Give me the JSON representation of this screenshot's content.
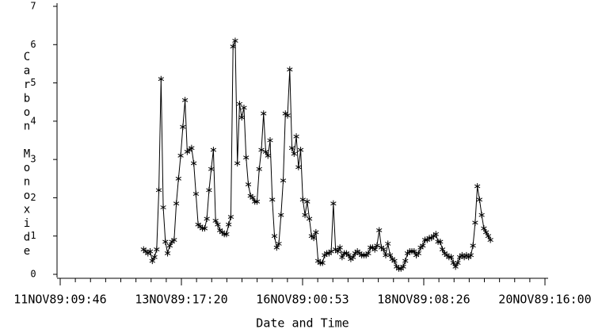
{
  "chart_data": {
    "type": "line",
    "x_label": "Date and Time",
    "y_label": "Carbon Monoxide",
    "color": "#000000",
    "marker": "asterisk",
    "xlim": [
      "1989-11-11T08:19",
      "1989-11-20T17:27"
    ],
    "xticks": [
      {
        "value": "1989-11-11T09:46",
        "label": "11NOV89:09:46"
      },
      {
        "value": "1989-11-13T17:20",
        "label": "13NOV89:17:20"
      },
      {
        "value": "1989-11-16T00:53",
        "label": "16NOV89:00:53"
      },
      {
        "value": "1989-11-18T08:26",
        "label": "18NOV89:08:26"
      },
      {
        "value": "1989-11-20T16:00",
        "label": "20NOV89:16:00"
      }
    ],
    "ylim": [
      0,
      7
    ],
    "yticks": [
      0,
      1,
      2,
      3,
      4,
      5,
      6,
      7
    ],
    "x": [
      "1989-11-13T00:00",
      "1989-11-13T01:00",
      "1989-11-13T02:00",
      "1989-11-13T03:00",
      "1989-11-13T04:00",
      "1989-11-13T05:00",
      "1989-11-13T06:00",
      "1989-11-13T07:00",
      "1989-11-13T08:00",
      "1989-11-13T09:00",
      "1989-11-13T10:00",
      "1989-11-13T11:00",
      "1989-11-13T12:00",
      "1989-11-13T13:00",
      "1989-11-13T14:00",
      "1989-11-13T15:00",
      "1989-11-13T16:00",
      "1989-11-13T17:00",
      "1989-11-13T18:00",
      "1989-11-13T19:00",
      "1989-11-13T20:00",
      "1989-11-13T21:00",
      "1989-11-13T22:00",
      "1989-11-13T23:00",
      "1989-11-14T00:00",
      "1989-11-14T01:00",
      "1989-11-14T02:00",
      "1989-11-14T03:00",
      "1989-11-14T04:00",
      "1989-11-14T05:00",
      "1989-11-14T06:00",
      "1989-11-14T07:00",
      "1989-11-14T08:00",
      "1989-11-14T09:00",
      "1989-11-14T10:00",
      "1989-11-14T11:00",
      "1989-11-14T12:00",
      "1989-11-14T13:00",
      "1989-11-14T14:00",
      "1989-11-14T15:00",
      "1989-11-14T16:00",
      "1989-11-14T17:00",
      "1989-11-14T18:00",
      "1989-11-14T19:00",
      "1989-11-14T20:00",
      "1989-11-14T21:00",
      "1989-11-14T22:00",
      "1989-11-14T23:00",
      "1989-11-15T00:00",
      "1989-11-15T01:00",
      "1989-11-15T02:00",
      "1989-11-15T03:00",
      "1989-11-15T04:00",
      "1989-11-15T05:00",
      "1989-11-15T06:00",
      "1989-11-15T07:00",
      "1989-11-15T08:00",
      "1989-11-15T09:00",
      "1989-11-15T10:00",
      "1989-11-15T11:00",
      "1989-11-15T12:00",
      "1989-11-15T13:00",
      "1989-11-15T14:00",
      "1989-11-15T15:00",
      "1989-11-15T16:00",
      "1989-11-15T17:00",
      "1989-11-15T18:00",
      "1989-11-15T19:00",
      "1989-11-15T20:00",
      "1989-11-15T21:00",
      "1989-11-15T22:00",
      "1989-11-15T23:00",
      "1989-11-16T00:00",
      "1989-11-16T01:00",
      "1989-11-16T02:00",
      "1989-11-16T03:00",
      "1989-11-16T04:00",
      "1989-11-16T05:00",
      "1989-11-16T06:00",
      "1989-11-16T07:00",
      "1989-11-16T08:00",
      "1989-11-16T09:00",
      "1989-11-16T10:00",
      "1989-11-16T11:00",
      "1989-11-16T12:00",
      "1989-11-16T13:00",
      "1989-11-16T14:00",
      "1989-11-16T15:00",
      "1989-11-16T16:00",
      "1989-11-16T17:00",
      "1989-11-16T18:00",
      "1989-11-16T19:00",
      "1989-11-16T20:00",
      "1989-11-16T21:00",
      "1989-11-16T22:00",
      "1989-11-16T23:00",
      "1989-11-17T00:00",
      "1989-11-17T01:00",
      "1989-11-17T02:00",
      "1989-11-17T03:00",
      "1989-11-17T04:00",
      "1989-11-17T05:00",
      "1989-11-17T06:00",
      "1989-11-17T07:00",
      "1989-11-17T08:00",
      "1989-11-17T09:00",
      "1989-11-17T10:00",
      "1989-11-17T11:00",
      "1989-11-17T12:00",
      "1989-11-17T13:00",
      "1989-11-17T14:00",
      "1989-11-17T15:00",
      "1989-11-17T16:00",
      "1989-11-17T17:00",
      "1989-11-17T18:00",
      "1989-11-17T19:00",
      "1989-11-17T20:00",
      "1989-11-17T21:00",
      "1989-11-17T22:00",
      "1989-11-17T23:00",
      "1989-11-18T00:00",
      "1989-11-18T01:00",
      "1989-11-18T02:00",
      "1989-11-18T03:00",
      "1989-11-18T04:00",
      "1989-11-18T05:00",
      "1989-11-18T06:00",
      "1989-11-18T07:00",
      "1989-11-18T08:00",
      "1989-11-18T09:00",
      "1989-11-18T10:00",
      "1989-11-18T11:00",
      "1989-11-18T12:00",
      "1989-11-18T13:00",
      "1989-11-18T14:00",
      "1989-11-18T15:00",
      "1989-11-18T16:00",
      "1989-11-18T17:00",
      "1989-11-18T18:00",
      "1989-11-18T19:00",
      "1989-11-18T20:00",
      "1989-11-18T21:00",
      "1989-11-18T22:00",
      "1989-11-18T23:00",
      "1989-11-19T00:00",
      "1989-11-19T01:00",
      "1989-11-19T02:00",
      "1989-11-19T03:00",
      "1989-11-19T04:00",
      "1989-11-19T05:00",
      "1989-11-19T06:00",
      "1989-11-19T07:00",
      "1989-11-19T08:00",
      "1989-11-19T09:00",
      "1989-11-19T10:00",
      "1989-11-19T11:00",
      "1989-11-19T12:00",
      "1989-11-19T13:00",
      "1989-11-19T14:00",
      "1989-11-19T15:00"
    ],
    "values": [
      0.65,
      0.6,
      0.55,
      0.6,
      0.35,
      0.45,
      0.65,
      2.2,
      5.1,
      1.75,
      0.85,
      0.55,
      0.75,
      0.85,
      0.9,
      1.85,
      2.5,
      3.1,
      3.85,
      4.55,
      3.2,
      3.25,
      3.3,
      2.9,
      2.1,
      1.3,
      1.25,
      1.2,
      1.2,
      1.45,
      2.2,
      2.75,
      3.25,
      1.4,
      1.3,
      1.15,
      1.1,
      1.05,
      1.05,
      1.3,
      1.5,
      5.95,
      6.1,
      2.9,
      4.45,
      4.1,
      4.35,
      3.05,
      2.35,
      2.05,
      2.0,
      1.9,
      1.9,
      2.75,
      3.25,
      4.2,
      3.2,
      3.1,
      3.5,
      1.95,
      1.0,
      0.7,
      0.8,
      1.55,
      2.45,
      4.2,
      4.15,
      5.35,
      3.3,
      3.15,
      3.6,
      2.8,
      3.25,
      1.95,
      1.55,
      1.9,
      1.45,
      1.0,
      0.95,
      1.1,
      0.35,
      0.3,
      0.3,
      0.5,
      0.55,
      0.55,
      0.6,
      1.85,
      0.65,
      0.6,
      0.7,
      0.45,
      0.55,
      0.55,
      0.5,
      0.4,
      0.45,
      0.55,
      0.6,
      0.55,
      0.5,
      0.5,
      0.5,
      0.55,
      0.7,
      0.7,
      0.65,
      0.75,
      1.15,
      0.7,
      0.65,
      0.5,
      0.8,
      0.5,
      0.4,
      0.35,
      0.2,
      0.15,
      0.15,
      0.2,
      0.35,
      0.55,
      0.6,
      0.6,
      0.6,
      0.5,
      0.55,
      0.7,
      0.75,
      0.9,
      0.9,
      0.95,
      0.95,
      1.0,
      1.05,
      0.85,
      0.85,
      0.65,
      0.55,
      0.5,
      0.45,
      0.45,
      0.3,
      0.2,
      0.3,
      0.45,
      0.5,
      0.45,
      0.5,
      0.45,
      0.5,
      0.75,
      1.35,
      2.3,
      1.95,
      1.55,
      1.2,
      1.1,
      1.0,
      0.9
    ]
  }
}
